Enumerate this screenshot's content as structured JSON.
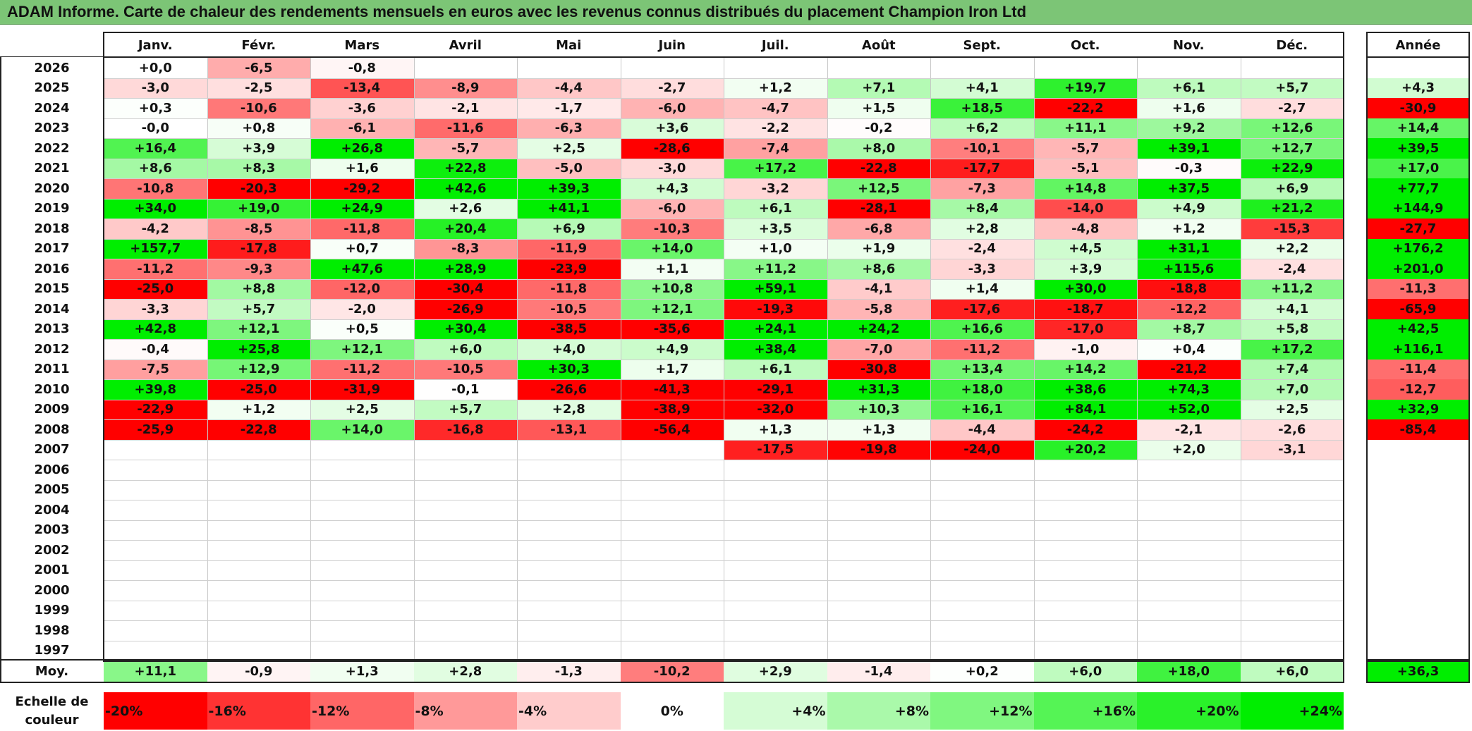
{
  "title": "ADAM Informe. Carte de chaleur des rendements mensuels en euros avec les revenus connus distribués du placement Champion Iron Ltd",
  "colors": {
    "title_bg": "#7cc576",
    "neg_strong": "#ff0000",
    "pos_strong": "#00ee00",
    "neutral": "#ffffff"
  },
  "chart_data": {
    "type": "heatmap",
    "months": [
      "Janv.",
      "Févr.",
      "Mars",
      "Avril",
      "Mai",
      "Juin",
      "Juil.",
      "Août",
      "Sept.",
      "Oct.",
      "Nov.",
      "Déc."
    ],
    "year_header": "Année",
    "years": [
      "2026",
      "2025",
      "2024",
      "2023",
      "2022",
      "2021",
      "2020",
      "2019",
      "2018",
      "2017",
      "2016",
      "2015",
      "2014",
      "2013",
      "2012",
      "2011",
      "2010",
      "2009",
      "2008",
      "2007",
      "2006",
      "2005",
      "2004",
      "2003",
      "2002",
      "2001",
      "2000",
      "1999",
      "1998",
      "1997"
    ],
    "values": [
      [
        "+0,0",
        "-6,5",
        "-0,8",
        "",
        "",
        "",
        "",
        "",
        "",
        "",
        "",
        ""
      ],
      [
        "-3,0",
        "-2,5",
        "-13,4",
        "-8,9",
        "-4,4",
        "-2,7",
        "+1,2",
        "+7,1",
        "+4,1",
        "+19,7",
        "+6,1",
        "+5,7"
      ],
      [
        "+0,3",
        "-10,6",
        "-3,6",
        "-2,1",
        "-1,7",
        "-6,0",
        "-4,7",
        "+1,5",
        "+18,5",
        "-22,2",
        "+1,6",
        "-2,7"
      ],
      [
        "-0,0",
        "+0,8",
        "-6,1",
        "-11,6",
        "-6,3",
        "+3,6",
        "-2,2",
        "-0,2",
        "+6,2",
        "+11,1",
        "+9,2",
        "+12,6"
      ],
      [
        "+16,4",
        "+3,9",
        "+26,8",
        "-5,7",
        "+2,5",
        "-28,6",
        "-7,4",
        "+8,0",
        "-10,1",
        "-5,7",
        "+39,1",
        "+12,7"
      ],
      [
        "+8,6",
        "+8,3",
        "+1,6",
        "+22,8",
        "-5,0",
        "-3,0",
        "+17,2",
        "-22,8",
        "-17,7",
        "-5,1",
        "-0,3",
        "+22,9"
      ],
      [
        "-10,8",
        "-20,3",
        "-29,2",
        "+42,6",
        "+39,3",
        "+4,3",
        "-3,2",
        "+12,5",
        "-7,3",
        "+14,8",
        "+37,5",
        "+6,9"
      ],
      [
        "+34,0",
        "+19,0",
        "+24,9",
        "+2,6",
        "+41,1",
        "-6,0",
        "+6,1",
        "-28,1",
        "+8,4",
        "-14,0",
        "+4,9",
        "+21,2"
      ],
      [
        "-4,2",
        "-8,5",
        "-11,8",
        "+20,4",
        "+6,9",
        "-10,3",
        "+3,5",
        "-6,8",
        "+2,8",
        "-4,8",
        "+1,2",
        "-15,3"
      ],
      [
        "+157,7",
        "-17,8",
        "+0,7",
        "-8,3",
        "-11,9",
        "+14,0",
        "+1,0",
        "+1,9",
        "-2,4",
        "+4,5",
        "+31,1",
        "+2,2"
      ],
      [
        "-11,2",
        "-9,3",
        "+47,6",
        "+28,9",
        "-23,9",
        "+1,1",
        "+11,2",
        "+8,6",
        "-3,3",
        "+3,9",
        "+115,6",
        "-2,4"
      ],
      [
        "-25,0",
        "+8,8",
        "-12,0",
        "-30,4",
        "-11,8",
        "+10,8",
        "+59,1",
        "-4,1",
        "+1,4",
        "+30,0",
        "-18,8",
        "+11,2"
      ],
      [
        "-3,3",
        "+5,7",
        "-2,0",
        "-26,9",
        "-10,5",
        "+12,1",
        "-19,3",
        "-5,8",
        "-17,6",
        "-18,7",
        "-12,2",
        "+4,1"
      ],
      [
        "+42,8",
        "+12,1",
        "+0,5",
        "+30,4",
        "-38,5",
        "-35,6",
        "+24,1",
        "+24,2",
        "+16,6",
        "-17,0",
        "+8,7",
        "+5,8"
      ],
      [
        "-0,4",
        "+25,8",
        "+12,1",
        "+6,0",
        "+4,0",
        "+4,9",
        "+38,4",
        "-7,0",
        "-11,2",
        "-1,0",
        "+0,4",
        "+17,2"
      ],
      [
        "-7,5",
        "+12,9",
        "-11,2",
        "-10,5",
        "+30,3",
        "+1,7",
        "+6,1",
        "-30,8",
        "+13,4",
        "+14,2",
        "-21,2",
        "+7,4"
      ],
      [
        "+39,8",
        "-25,0",
        "-31,9",
        "-0,1",
        "-26,6",
        "-41,3",
        "-29,1",
        "+31,3",
        "+18,0",
        "+38,6",
        "+74,3",
        "+7,0"
      ],
      [
        "-22,9",
        "+1,2",
        "+2,5",
        "+5,7",
        "+2,8",
        "-38,9",
        "-32,0",
        "+10,3",
        "+16,1",
        "+84,1",
        "+52,0",
        "+2,5"
      ],
      [
        "-25,9",
        "-22,8",
        "+14,0",
        "-16,8",
        "-13,1",
        "-56,4",
        "+1,3",
        "+1,3",
        "-4,4",
        "-24,2",
        "-2,1",
        "-2,6"
      ],
      [
        "",
        "",
        "",
        "",
        "",
        "",
        "-17,5",
        "-19,8",
        "-24,0",
        "+20,2",
        "+2,0",
        "-3,1"
      ],
      [
        "",
        "",
        "",
        "",
        "",
        "",
        "",
        "",
        "",
        "",
        "",
        ""
      ],
      [
        "",
        "",
        "",
        "",
        "",
        "",
        "",
        "",
        "",
        "",
        "",
        ""
      ],
      [
        "",
        "",
        "",
        "",
        "",
        "",
        "",
        "",
        "",
        "",
        "",
        ""
      ],
      [
        "",
        "",
        "",
        "",
        "",
        "",
        "",
        "",
        "",
        "",
        "",
        ""
      ],
      [
        "",
        "",
        "",
        "",
        "",
        "",
        "",
        "",
        "",
        "",
        "",
        ""
      ],
      [
        "",
        "",
        "",
        "",
        "",
        "",
        "",
        "",
        "",
        "",
        "",
        ""
      ],
      [
        "",
        "",
        "",
        "",
        "",
        "",
        "",
        "",
        "",
        "",
        "",
        ""
      ],
      [
        "",
        "",
        "",
        "",
        "",
        "",
        "",
        "",
        "",
        "",
        "",
        ""
      ],
      [
        "",
        "",
        "",
        "",
        "",
        "",
        "",
        "",
        "",
        "",
        "",
        ""
      ],
      [
        "",
        "",
        "",
        "",
        "",
        "",
        "",
        "",
        "",
        "",
        "",
        ""
      ]
    ],
    "annual": [
      "",
      "+4,3",
      "-30,9",
      "+14,4",
      "+39,5",
      "+17,0",
      "+77,7",
      "+144,9",
      "-27,7",
      "+176,2",
      "+201,0",
      "-11,3",
      "-65,9",
      "+42,5",
      "+116,1",
      "-11,4",
      "-12,7",
      "+32,9",
      "-85,4",
      "",
      "",
      "",
      "",
      "",
      "",
      "",
      "",
      "",
      "",
      ""
    ],
    "average_label": "Moy.",
    "average": [
      "+11,1",
      "-0,9",
      "+1,3",
      "+2,8",
      "-1,3",
      "-10,2",
      "+2,9",
      "-1,4",
      "+0,2",
      "+6,0",
      "+18,0",
      "+6,0"
    ],
    "average_annual": "+36,3",
    "scale_label_line1": "Echelle de",
    "scale_label_line2": "couleur",
    "scale": [
      "-20%",
      "-16%",
      "-12%",
      "-8%",
      "-4%",
      "0%",
      "+4%",
      "+8%",
      "+12%",
      "+16%",
      "+20%",
      "+24%"
    ],
    "scale_values": [
      -20,
      -16,
      -12,
      -8,
      -4,
      0,
      4,
      8,
      12,
      16,
      20,
      24
    ]
  }
}
